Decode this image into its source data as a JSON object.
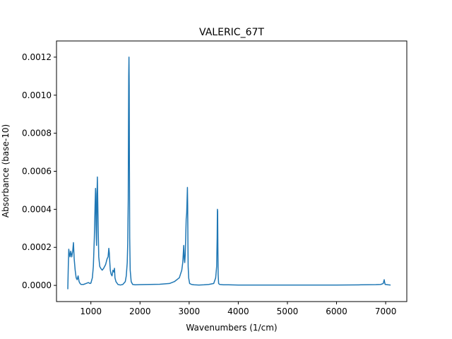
{
  "chart_data": {
    "type": "line",
    "title": "VALERIC_67T",
    "xlabel": "Wavenumbers (1/cm)",
    "ylabel": "Absorbance (base-10)",
    "xlim": [
      300,
      7430
    ],
    "ylim": [
      -8.5e-05,
      0.001285
    ],
    "grid": false,
    "legend": "none",
    "line_color": "#1f77b4",
    "xticks": [
      1000,
      2000,
      3000,
      4000,
      5000,
      6000,
      7000
    ],
    "xtick_labels": [
      "1000",
      "2000",
      "3000",
      "4000",
      "5000",
      "6000",
      "7000"
    ],
    "yticks": [
      0,
      0.0002,
      0.0004,
      0.0006,
      0.0008,
      0.001,
      0.0012
    ],
    "ytick_labels": [
      "0.0000",
      "0.0002",
      "0.0004",
      "0.0006",
      "0.0008",
      "0.0010",
      "0.0012"
    ],
    "series": [
      {
        "x": [
          530,
          540,
          550,
          560,
          575,
          590,
          610,
          630,
          645,
          660,
          680,
          700,
          720,
          740,
          760,
          780,
          800,
          850,
          900,
          950,
          980,
          1000,
          1030,
          1050,
          1070,
          1085,
          1095,
          1100,
          1105,
          1115,
          1125,
          1132,
          1140,
          1150,
          1160,
          1180,
          1200,
          1230,
          1260,
          1300,
          1330,
          1350,
          1365,
          1375,
          1385,
          1395,
          1410,
          1430,
          1450,
          1470,
          1480,
          1490,
          1510,
          1550,
          1600,
          1650,
          1700,
          1720,
          1740,
          1750,
          1760,
          1765,
          1770,
          1775,
          1780,
          1785,
          1790,
          1800,
          1820,
          1850,
          1900,
          2000,
          2200,
          2400,
          2600,
          2700,
          2800,
          2850,
          2870,
          2880,
          2890,
          2900,
          2910,
          2920,
          2930,
          2940,
          2950,
          2960,
          2965,
          2970,
          2975,
          2980,
          2990,
          3010,
          3050,
          3100,
          3200,
          3300,
          3400,
          3500,
          3540,
          3560,
          3570,
          3575,
          3580,
          3585,
          3590,
          3600,
          3620,
          3700,
          3800,
          4000,
          4500,
          5000,
          5500,
          6000,
          6500,
          6800,
          6900,
          6950,
          6970,
          6980,
          6990,
          7000,
          7050,
          7100
        ],
        "y": [
          -2e-05,
          0.0001,
          0.00019,
          0.00017,
          0.00015,
          0.00018,
          0.00015,
          0.00018,
          0.000225,
          0.00014,
          8e-05,
          4e-05,
          3e-05,
          5e-05,
          2e-05,
          1e-05,
          5e-06,
          5e-06,
          1e-05,
          1.5e-05,
          1e-05,
          1.2e-05,
          4e-05,
          0.0001,
          0.00025,
          0.00042,
          0.00051,
          0.00048,
          0.00032,
          0.00021,
          0.00048,
          0.00057,
          0.00044,
          0.00028,
          0.00015,
          0.0001,
          9e-05,
          8e-05,
          9e-05,
          0.00011,
          0.00014,
          0.00015,
          0.000195,
          0.00017,
          0.00012,
          8e-05,
          6e-05,
          5e-05,
          8e-05,
          7e-05,
          9e-05,
          4e-05,
          2e-05,
          5e-06,
          2e-06,
          5e-06,
          2e-05,
          5e-05,
          0.00012,
          0.00022,
          0.00045,
          0.0008,
          0.0011,
          0.0012,
          0.00105,
          0.0006,
          0.00025,
          8e-05,
          2e-05,
          5e-06,
          3e-06,
          4e-06,
          5e-06,
          6e-06,
          1e-05,
          2e-05,
          4e-05,
          8e-05,
          0.00012,
          0.000165,
          0.00021,
          0.00014,
          0.00012,
          0.00016,
          0.00025,
          0.00035,
          0.00038,
          0.00047,
          0.000515,
          0.00042,
          0.00022,
          0.0001,
          4e-05,
          1e-05,
          5e-06,
          3e-06,
          2e-06,
          3e-06,
          5e-06,
          1e-05,
          4e-05,
          0.0001,
          0.00025,
          0.0004,
          0.00039,
          0.0002,
          6e-05,
          1e-05,
          5e-06,
          3e-06,
          3e-06,
          2e-06,
          2e-06,
          2e-06,
          2e-06,
          2e-06,
          3e-06,
          4e-06,
          5e-06,
          1e-05,
          3e-05,
          1.5e-05,
          5e-06,
          5e-06,
          3e-06,
          2e-06
        ]
      }
    ]
  }
}
